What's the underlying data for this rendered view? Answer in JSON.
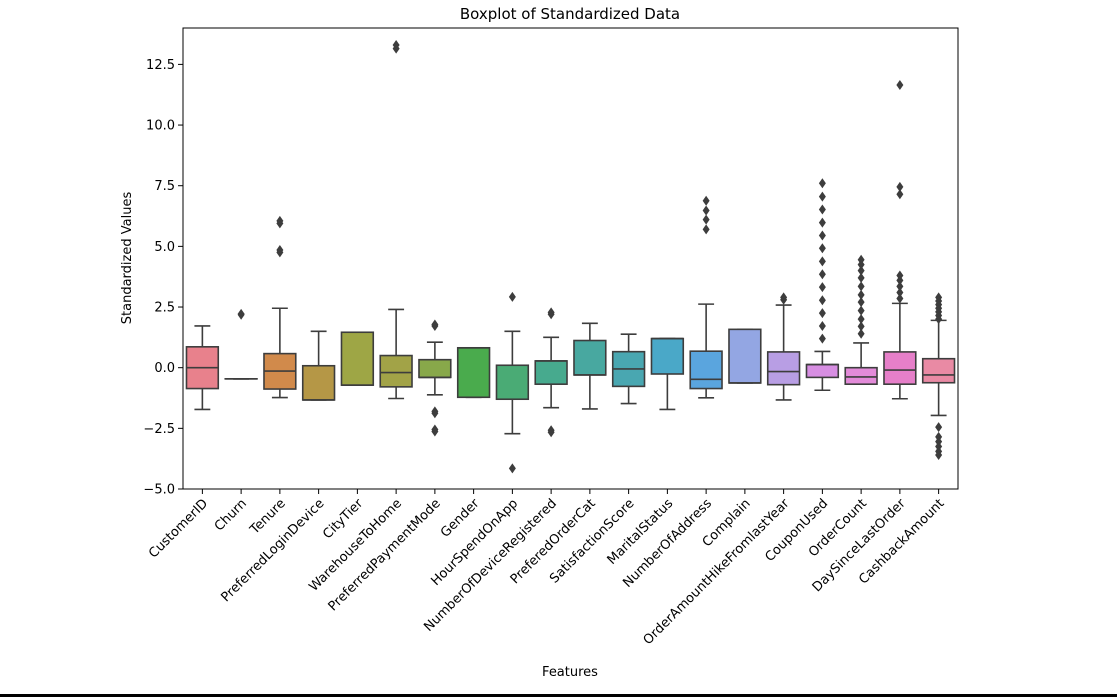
{
  "chart_data": {
    "type": "box",
    "title": "Boxplot of Standardized Data",
    "xlabel": "Features",
    "ylabel": "Standardized Values",
    "ylim": [
      -5.0,
      14.0
    ],
    "yticks": [
      -5.0,
      -2.5,
      0.0,
      2.5,
      5.0,
      7.5,
      10.0,
      12.5
    ],
    "ytick_labels": [
      "−5.0",
      "−2.5",
      "0.0",
      "2.5",
      "5.0",
      "7.5",
      "10.0",
      "12.5"
    ],
    "grid": false,
    "categories": [
      "CustomerID",
      "Churn",
      "Tenure",
      "PreferredLoginDevice",
      "CityTier",
      "WarehouseToHome",
      "PreferredPaymentMode",
      "Gender",
      "HourSpendOnApp",
      "NumberOfDeviceRegistered",
      "PreferedOrderCat",
      "SatisfactionScore",
      "MaritalStatus",
      "NumberOfAddress",
      "Complain",
      "OrderAmountHikeFromlastYear",
      "CouponUsed",
      "OrderCount",
      "DaySinceLastOrder",
      "CashbackAmount"
    ],
    "boxes": [
      {
        "name": "CustomerID",
        "color": "#e8818c",
        "whislo": -1.72,
        "q1": -0.86,
        "med": 0.0,
        "q3": 0.86,
        "whishi": 1.72,
        "fliers": []
      },
      {
        "name": "Churn",
        "color": "#e8877d",
        "whislo": -0.46,
        "q1": -0.46,
        "med": -0.46,
        "q3": -0.46,
        "whishi": -0.46,
        "fliers": [
          2.18,
          2.22
        ]
      },
      {
        "name": "Tenure",
        "color": "#d18a4b",
        "whislo": -1.23,
        "q1": -0.88,
        "med": -0.14,
        "q3": 0.58,
        "whishi": 2.45,
        "fliers": [
          4.75,
          4.85,
          5.95,
          6.05
        ]
      },
      {
        "name": "PreferredLoginDevice",
        "color": "#b59746",
        "whislo": -1.33,
        "q1": -1.33,
        "med": -1.33,
        "q3": 0.08,
        "whishi": 1.5,
        "fliers": []
      },
      {
        "name": "CityTier",
        "color": "#9ea645",
        "whislo": -0.72,
        "q1": -0.72,
        "med": -0.72,
        "q3": 1.46,
        "whishi": 1.46,
        "fliers": []
      },
      {
        "name": "WarehouseToHome",
        "color": "#a2a347",
        "whislo": -1.27,
        "q1": -0.79,
        "med": -0.2,
        "q3": 0.5,
        "whishi": 2.4,
        "fliers": [
          13.15,
          13.3
        ]
      },
      {
        "name": "PreferredPaymentMode",
        "color": "#88a84a",
        "whislo": -1.12,
        "q1": -0.4,
        "med": -0.4,
        "q3": 0.33,
        "whishi": 1.05,
        "fliers": [
          1.72,
          1.78,
          -1.8,
          -1.88,
          -2.55,
          -2.63
        ]
      },
      {
        "name": "Gender",
        "color": "#4aab4d",
        "whislo": -1.22,
        "q1": -1.22,
        "med": 0.82,
        "q3": 0.82,
        "whishi": 0.82,
        "fliers": []
      },
      {
        "name": "HourSpendOnApp",
        "color": "#4aab75",
        "whislo": -2.72,
        "q1": -1.3,
        "med": 0.1,
        "q3": 0.1,
        "whishi": 1.5,
        "fliers": [
          2.92,
          -4.15
        ]
      },
      {
        "name": "NumberOfDeviceRegistered",
        "color": "#47aa8e",
        "whislo": -1.65,
        "q1": -0.68,
        "med": 0.28,
        "q3": 0.28,
        "whishi": 1.25,
        "fliers": [
          2.2,
          2.28,
          -2.58,
          -2.66
        ]
      },
      {
        "name": "PreferedOrderCat",
        "color": "#48a8a0",
        "whislo": -1.7,
        "q1": -0.3,
        "med": -0.3,
        "q3": 1.12,
        "whishi": 1.83,
        "fliers": []
      },
      {
        "name": "SatisfactionScore",
        "color": "#49a7b1",
        "whislo": -1.48,
        "q1": -0.77,
        "med": -0.05,
        "q3": 0.66,
        "whishi": 1.38,
        "fliers": []
      },
      {
        "name": "MaritalStatus",
        "color": "#4aa8c8",
        "whislo": -1.72,
        "q1": -0.26,
        "med": 1.2,
        "q3": 1.2,
        "whishi": 1.2,
        "fliers": []
      },
      {
        "name": "NumberOfAddress",
        "color": "#5aa5de",
        "whislo": -1.24,
        "q1": -0.86,
        "med": -0.48,
        "q3": 0.68,
        "whishi": 2.62,
        "fliers": [
          5.7,
          6.1,
          6.48,
          6.88
        ]
      },
      {
        "name": "Complain",
        "color": "#93a6e3",
        "whislo": -0.63,
        "q1": -0.63,
        "med": -0.63,
        "q3": 1.58,
        "whishi": 1.58,
        "fliers": []
      },
      {
        "name": "OrderAmountHikeFromlastYear",
        "color": "#b89ee4",
        "whislo": -1.33,
        "q1": -0.7,
        "med": -0.16,
        "q3": 0.65,
        "whishi": 2.58,
        "fliers": [
          2.8,
          2.9
        ]
      },
      {
        "name": "CouponUsed",
        "color": "#d78ee2",
        "whislo": -0.93,
        "q1": -0.4,
        "med": 0.13,
        "q3": 0.13,
        "whishi": 0.67,
        "fliers": [
          1.2,
          1.72,
          2.25,
          2.78,
          3.32,
          3.85,
          4.38,
          4.92,
          5.45,
          5.98,
          6.52,
          7.05,
          7.6
        ]
      },
      {
        "name": "OrderCount",
        "color": "#e38bd9",
        "whislo": -0.68,
        "q1": -0.68,
        "med": -0.38,
        "q3": 0.0,
        "whishi": 1.02,
        "fliers": [
          1.4,
          1.7,
          2.0,
          2.35,
          2.7,
          3.0,
          3.35,
          3.7,
          4.0,
          4.25,
          4.45
        ]
      },
      {
        "name": "DaySinceLastOrder",
        "color": "#e67fc9",
        "whislo": -1.28,
        "q1": -0.68,
        "med": -0.1,
        "q3": 0.65,
        "whishi": 2.65,
        "fliers": [
          2.85,
          3.1,
          3.35,
          3.6,
          3.8,
          7.15,
          7.45,
          11.65
        ]
      },
      {
        "name": "CashbackAmount",
        "color": "#e98aa4",
        "whislo": -1.97,
        "q1": -0.62,
        "med": -0.3,
        "q3": 0.37,
        "whishi": 1.95,
        "fliers": [
          2.0,
          2.15,
          2.3,
          2.45,
          2.6,
          2.75,
          2.9,
          -2.45,
          -2.85,
          -3.05,
          -3.25,
          -3.45,
          -3.6
        ]
      }
    ]
  }
}
